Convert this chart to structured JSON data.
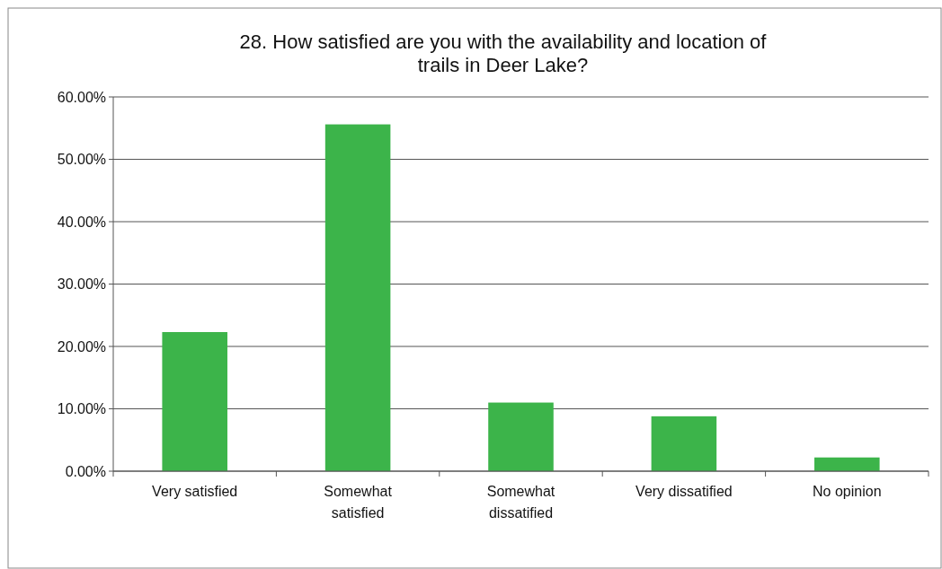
{
  "chart_data": {
    "type": "bar",
    "title": "28. How satisfied are you with the availability and location of\ntrails in Deer Lake?",
    "categories": [
      "Very satisfied",
      "Somewhat\nsatisfied",
      "Somewhat\ndissatified",
      "Very dissatified",
      "No opinion"
    ],
    "values": [
      22.3,
      55.6,
      11.0,
      8.8,
      2.2
    ],
    "color": "#3cb44a",
    "ylim": [
      0,
      60
    ],
    "yticks": [
      {
        "value": 0,
        "label": "0.00%"
      },
      {
        "value": 10,
        "label": "10.00%"
      },
      {
        "value": 20,
        "label": "20.00%"
      },
      {
        "value": 30,
        "label": "30.00%"
      },
      {
        "value": 40,
        "label": "40.00%"
      },
      {
        "value": 50,
        "label": "50.00%"
      },
      {
        "value": 60,
        "label": "60.00%"
      }
    ],
    "grid": "y"
  }
}
